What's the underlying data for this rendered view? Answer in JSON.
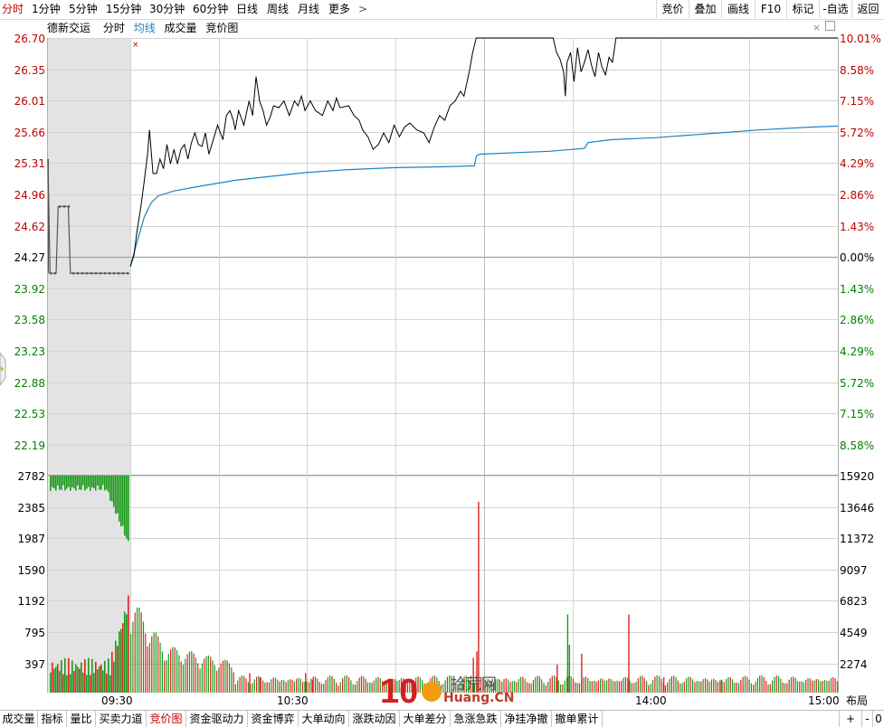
{
  "toolbar": {
    "periods": [
      "分时",
      "1分钟",
      "5分钟",
      "15分钟",
      "30分钟",
      "60分钟",
      "日线",
      "周线",
      "月线",
      "更多"
    ],
    "more_chevron": ">",
    "buttons": [
      "竞价",
      "叠加",
      "画线",
      "F10",
      "标记",
      "-自选",
      "返回"
    ]
  },
  "chart_header": {
    "stock_name": "德新交运",
    "tabs": [
      "分时",
      "均线",
      "成交量",
      "竞价图"
    ],
    "close_mark": "×",
    "auction_close": "×",
    "auction_marker": "×"
  },
  "price_axis": {
    "labels": [
      "26.70",
      "26.35",
      "26.01",
      "25.66",
      "25.31",
      "24.96",
      "24.62",
      "24.27",
      "23.92",
      "23.58",
      "23.23",
      "22.88",
      "22.53",
      "22.19"
    ],
    "pct_labels": [
      "10.01%",
      "8.58%",
      "7.15%",
      "5.72%",
      "4.29%",
      "2.86%",
      "1.43%",
      "0.00%",
      "1.43%",
      "2.86%",
      "4.29%",
      "5.72%",
      "7.15%",
      "8.58%"
    ],
    "colors": {
      "up": "#c00000",
      "flat": "#000000",
      "down": "#008000"
    }
  },
  "volume_axis": {
    "left_labels": [
      "2782",
      "2385",
      "1987",
      "1590",
      "1192",
      "795",
      "397"
    ],
    "right_labels": [
      "15920",
      "13646",
      "11372",
      "9097",
      "6823",
      "4549",
      "2274"
    ]
  },
  "time_labels": [
    "09:30",
    "10:30",
    "14:00",
    "15:00"
  ],
  "bottom_tabs": [
    "成交量",
    "指标",
    "量比",
    "买卖力道",
    "竞价图",
    "资金驱动力",
    "资金博弈",
    "大单动向",
    "涨跌动因",
    "大单差分",
    "急涨急跌",
    "净挂净撤",
    "撤单累计"
  ],
  "bottom_tab_active": "竞价图",
  "bottom_right": {
    "layout": "布局",
    "plus": "+",
    "minus": "-",
    "zero": "0"
  },
  "watermark": {
    "text": "拾荒网",
    "sub": "Huang.CN",
    "num": "10"
  },
  "colors": {
    "price_line": "#000000",
    "avg_line": "#1a82c4",
    "vol_up": "#e02020",
    "vol_down": "#1a9a1a",
    "auction_bg": "#e3e3e3",
    "grid": "#d4d4d4",
    "accent": "#c00000"
  },
  "chart_data": {
    "type": "line",
    "prev_close": 24.27,
    "ylim": [
      22.19,
      26.7
    ],
    "price": [
      [
        0,
        24.34
      ],
      [
        2,
        24.45
      ],
      [
        4,
        24.72
      ],
      [
        6,
        24.95
      ],
      [
        8,
        25.22
      ],
      [
        10,
        25.52
      ],
      [
        11,
        25.75
      ],
      [
        12,
        25.52
      ],
      [
        13,
        25.3
      ],
      [
        15,
        25.3
      ],
      [
        17,
        25.45
      ],
      [
        19,
        25.35
      ],
      [
        21,
        25.6
      ],
      [
        23,
        25.4
      ],
      [
        25,
        25.55
      ],
      [
        27,
        25.4
      ],
      [
        29,
        25.55
      ],
      [
        31,
        25.6
      ],
      [
        33,
        25.45
      ],
      [
        35,
        25.62
      ],
      [
        37,
        25.72
      ],
      [
        39,
        25.6
      ],
      [
        41,
        25.58
      ],
      [
        43,
        25.72
      ],
      [
        45,
        25.5
      ],
      [
        47,
        25.62
      ],
      [
        50,
        25.8
      ],
      [
        53,
        25.65
      ],
      [
        55,
        25.9
      ],
      [
        57,
        25.95
      ],
      [
        59,
        25.85
      ],
      [
        60,
        25.75
      ],
      [
        62,
        25.95
      ],
      [
        65,
        25.8
      ],
      [
        68,
        26.05
      ],
      [
        70,
        25.9
      ],
      [
        72,
        26.3
      ],
      [
        74,
        26.05
      ],
      [
        76,
        25.95
      ],
      [
        78,
        25.8
      ],
      [
        80,
        25.88
      ],
      [
        82,
        26.0
      ],
      [
        85,
        25.98
      ],
      [
        88,
        26.05
      ],
      [
        91,
        25.9
      ],
      [
        94,
        26.05
      ],
      [
        96,
        26.0
      ],
      [
        98,
        26.1
      ],
      [
        100,
        25.95
      ],
      [
        103,
        26.05
      ],
      [
        106,
        25.95
      ],
      [
        110,
        25.9
      ],
      [
        113,
        26.05
      ],
      [
        116,
        25.95
      ],
      [
        118,
        26.08
      ],
      [
        120,
        25.98
      ],
      [
        125,
        26.0
      ],
      [
        128,
        25.9
      ],
      [
        131,
        25.85
      ],
      [
        133,
        25.75
      ],
      [
        136,
        25.68
      ],
      [
        139,
        25.55
      ],
      [
        142,
        25.6
      ],
      [
        145,
        25.72
      ],
      [
        148,
        25.62
      ],
      [
        151,
        25.8
      ],
      [
        154,
        25.68
      ],
      [
        157,
        25.78
      ],
      [
        160,
        25.82
      ],
      [
        164,
        25.75
      ],
      [
        168,
        25.72
      ],
      [
        171,
        25.62
      ],
      [
        174,
        25.78
      ],
      [
        177,
        25.9
      ],
      [
        180,
        25.85
      ],
      [
        183,
        26.0
      ],
      [
        186,
        26.05
      ],
      [
        189,
        26.15
      ],
      [
        191,
        26.1
      ],
      [
        194,
        26.35
      ],
      [
        196,
        26.55
      ],
      [
        198,
        26.7
      ],
      [
        200,
        26.7
      ],
      [
        210,
        26.7
      ],
      [
        215,
        26.7
      ],
      [
        220,
        26.7
      ],
      [
        225,
        26.7
      ],
      [
        230,
        26.7
      ],
      [
        235,
        26.7
      ],
      [
        240,
        26.7
      ],
      [
        242,
        26.7
      ],
      [
        244,
        26.55
      ],
      [
        246,
        26.48
      ],
      [
        248,
        26.35
      ],
      [
        249,
        26.1
      ],
      [
        250,
        26.45
      ],
      [
        252,
        26.55
      ],
      [
        254,
        26.25
      ],
      [
        256,
        26.6
      ],
      [
        258,
        26.35
      ],
      [
        260,
        26.45
      ],
      [
        262,
        26.58
      ],
      [
        264,
        26.42
      ],
      [
        266,
        26.3
      ],
      [
        268,
        26.55
      ],
      [
        270,
        26.4
      ],
      [
        272,
        26.32
      ],
      [
        274,
        26.5
      ],
      [
        276,
        26.45
      ],
      [
        278,
        26.7
      ],
      [
        280,
        26.7
      ],
      [
        290,
        26.7
      ],
      [
        300,
        26.7
      ],
      [
        310,
        26.7
      ],
      [
        320,
        26.7
      ],
      [
        330,
        26.7
      ],
      [
        340,
        26.7
      ],
      [
        350,
        26.7
      ],
      [
        360,
        26.7
      ],
      [
        370,
        26.7
      ],
      [
        380,
        26.7
      ],
      [
        390,
        26.7
      ],
      [
        400,
        26.7
      ],
      [
        405,
        26.7
      ]
    ],
    "avg": [
      [
        0,
        24.34
      ],
      [
        4,
        24.6
      ],
      [
        8,
        24.85
      ],
      [
        12,
        25.0
      ],
      [
        16,
        25.07
      ],
      [
        25,
        25.12
      ],
      [
        40,
        25.17
      ],
      [
        60,
        25.23
      ],
      [
        80,
        25.27
      ],
      [
        100,
        25.31
      ],
      [
        125,
        25.34
      ],
      [
        150,
        25.36
      ],
      [
        180,
        25.37
      ],
      [
        197,
        25.38
      ],
      [
        198,
        25.48
      ],
      [
        200,
        25.5
      ],
      [
        240,
        25.53
      ],
      [
        260,
        25.56
      ],
      [
        262,
        25.62
      ],
      [
        275,
        25.65
      ],
      [
        300,
        25.67
      ],
      [
        330,
        25.71
      ],
      [
        360,
        25.75
      ],
      [
        390,
        25.78
      ],
      [
        405,
        25.79
      ]
    ],
    "auction_price": [
      [
        0,
        25.45
      ],
      [
        1,
        24.27
      ],
      [
        4,
        24.27
      ],
      [
        5,
        24.96
      ],
      [
        10,
        24.96
      ],
      [
        11,
        24.27
      ],
      [
        40,
        24.27
      ]
    ],
    "volume_up_spikes": [
      [
        68,
        0.09
      ],
      [
        74,
        0.07
      ],
      [
        100,
        0.09
      ],
      [
        104,
        0.06
      ],
      [
        196,
        0.16
      ],
      [
        198,
        0.19
      ],
      [
        199,
        0.88
      ],
      [
        244,
        0.13
      ],
      [
        258,
        0.18
      ],
      [
        285,
        0.36
      ],
      [
        305,
        0.07
      ]
    ],
    "volume_down_spikes": [
      [
        250,
        0.36
      ],
      [
        251,
        0.22
      ],
      [
        338,
        0.06
      ]
    ]
  }
}
